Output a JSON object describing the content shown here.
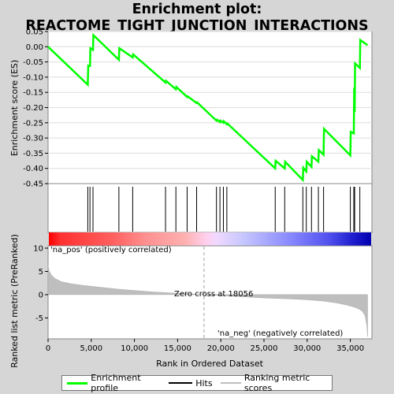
{
  "title_line1": "Enrichment plot:",
  "title_line2": "REACTOME_TIGHT_JUNCTION_INTERACTIONS",
  "colors": {
    "enrichment": "#00ff00",
    "hits": "#000000",
    "metric_fill": "#bebebe",
    "zero_line": "#a0a0a0",
    "pos_label": "#cc0000",
    "neg_label": "#00008b"
  },
  "chart_data": {
    "type": "line",
    "x_range": [
      0,
      37500
    ],
    "x_ticks": [
      0,
      5000,
      10000,
      15000,
      20000,
      25000,
      30000,
      35000
    ],
    "x_tick_labels": [
      "0",
      "5,000",
      "10,000",
      "15,000",
      "20,000",
      "25,000",
      "30,000",
      "35,000"
    ],
    "xlabel": "Rank in Ordered Dataset",
    "top_panel": {
      "ylabel": "Enrichment score (ES)",
      "ylim": [
        -0.45,
        0.05
      ],
      "y_ticks": [
        0.05,
        0.0,
        -0.05,
        -0.1,
        -0.15,
        -0.2,
        -0.25,
        -0.3,
        -0.35,
        -0.4,
        -0.45
      ],
      "y_tick_labels": [
        "0.05",
        "0.00",
        "-0.05",
        "-0.10",
        "-0.15",
        "-0.20",
        "-0.25",
        "-0.30",
        "-0.35",
        "-0.40",
        "-0.45"
      ],
      "series": [
        {
          "name": "Enrichment profile",
          "x": [
            0,
            4600,
            4650,
            4850,
            4900,
            5200,
            5250,
            8200,
            8250,
            9800,
            9850,
            13600,
            13650,
            14800,
            14850,
            16100,
            16150,
            17200,
            17250,
            19500,
            19550,
            19900,
            19950,
            20300,
            20350,
            20700,
            20750,
            26300,
            26350,
            27400,
            27450,
            29500,
            29550,
            29900,
            29950,
            30500,
            30550,
            31300,
            31350,
            31900,
            31950,
            35000,
            35050,
            35400,
            35450,
            35500,
            35550,
            36100,
            36150,
            37000
          ],
          "y": [
            0.0,
            -0.125,
            -0.062,
            -0.063,
            -0.005,
            -0.01,
            0.038,
            -0.043,
            -0.005,
            -0.035,
            -0.025,
            -0.118,
            -0.112,
            -0.14,
            -0.132,
            -0.165,
            -0.163,
            -0.185,
            -0.183,
            -0.243,
            -0.24,
            -0.248,
            -0.243,
            -0.25,
            -0.245,
            -0.255,
            -0.252,
            -0.4,
            -0.375,
            -0.4,
            -0.378,
            -0.438,
            -0.398,
            -0.41,
            -0.378,
            -0.395,
            -0.36,
            -0.378,
            -0.34,
            -0.355,
            -0.27,
            -0.357,
            -0.28,
            -0.285,
            -0.135,
            -0.215,
            -0.055,
            -0.07,
            0.022,
            0.005
          ]
        }
      ]
    },
    "hits": [
      4600,
      4850,
      5200,
      8200,
      9800,
      13600,
      14800,
      16100,
      17200,
      19500,
      19900,
      20300,
      20700,
      26300,
      27400,
      29500,
      29900,
      30500,
      31300,
      31900,
      35000,
      35400,
      35500,
      36100
    ],
    "bottom_panel": {
      "ylabel": "Ranked list metric (PreRanked)",
      "ylim": [
        -9.5,
        10.5
      ],
      "y_ticks": [
        10,
        5,
        0,
        -5
      ],
      "y_tick_labels": [
        "10",
        "5",
        "0",
        "-5"
      ],
      "series": [
        {
          "name": "Ranking metric scores",
          "x": [
            0,
            150,
            400,
            800,
            1500,
            2500,
            4000,
            6000,
            8000,
            10000,
            12000,
            14000,
            16000,
            18056,
            20000,
            22000,
            25000,
            28000,
            30000,
            32000,
            33500,
            34500,
            35500,
            36000,
            36400,
            36700,
            36900,
            37000
          ],
          "y": [
            6.2,
            5.0,
            4.2,
            3.5,
            2.8,
            2.4,
            2.0,
            1.6,
            1.2,
            0.9,
            0.6,
            0.4,
            0.2,
            0.0,
            -0.2,
            -0.4,
            -0.7,
            -0.9,
            -1.1,
            -1.4,
            -1.8,
            -2.2,
            -2.7,
            -3.1,
            -3.6,
            -4.5,
            -6.5,
            -9.0
          ]
        }
      ],
      "pos_label": "'na_pos' (positively correlated)",
      "neg_label": "'na_neg' (negatively correlated)",
      "zero_cross_label": "Zero cross at 18056",
      "zero_cross": 18056
    },
    "legend": [
      "Enrichment profile",
      "Hits",
      "Ranking metric scores"
    ]
  }
}
